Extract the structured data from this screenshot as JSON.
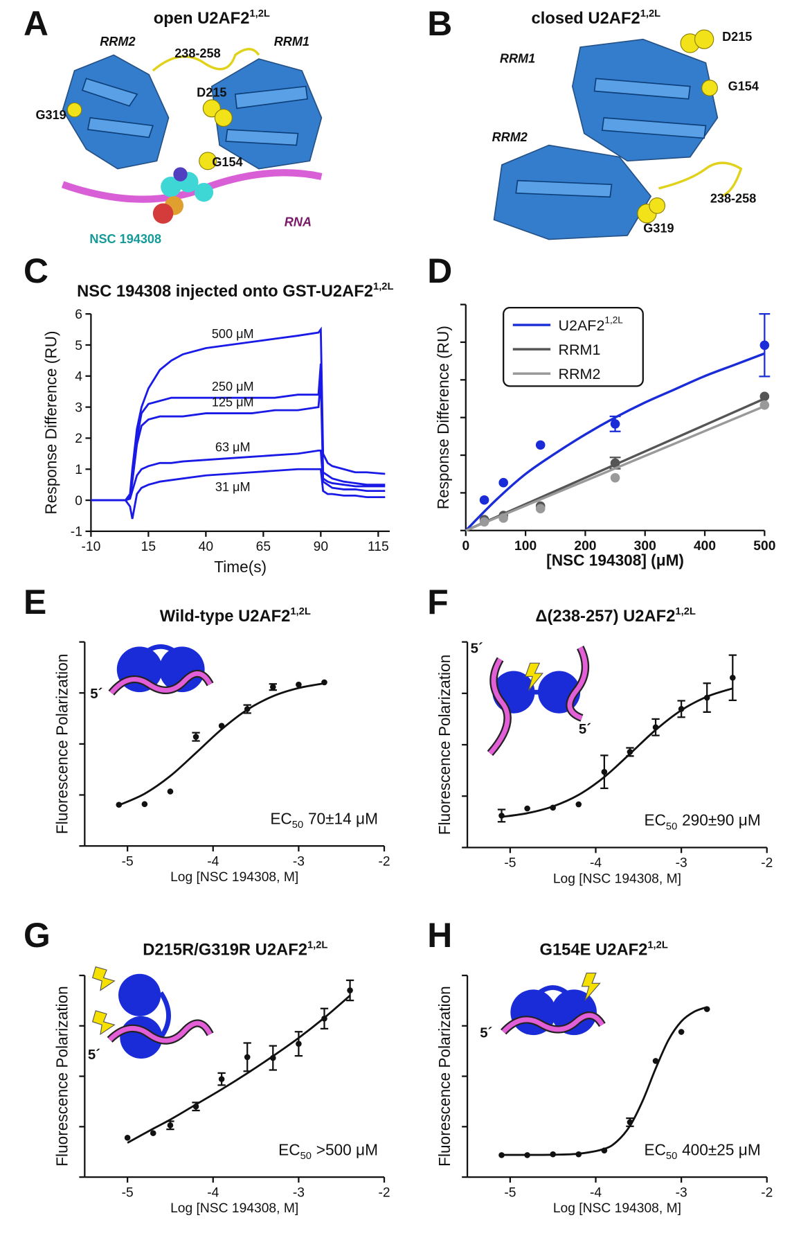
{
  "structures": [
    {
      "letter": "A",
      "title": "open U2AF2",
      "title_sup": "1,2L",
      "labels": [
        "RRM2",
        "238-258",
        "RRM1",
        "D215",
        "G319",
        "G154",
        "NSC 194308",
        "RNA"
      ]
    },
    {
      "letter": "B",
      "title": "closed U2AF2",
      "title_sup": "1,2L",
      "labels": [
        "RRM1",
        "D215",
        "G154",
        "RRM2",
        "238-258",
        "G319"
      ]
    }
  ],
  "chart_data": [
    {
      "type": "line",
      "letter": "C",
      "title": "NSC 194308 injected onto GST-U2AF2",
      "title_sup": "1,2L",
      "xlabel": "Time(s)",
      "ylabel": "Response Difference (RU)",
      "xlim": [
        -10,
        120
      ],
      "ylim": [
        -1,
        6
      ],
      "xticks": [
        -10,
        15,
        40,
        65,
        90,
        115
      ],
      "yticks": [
        -1,
        0,
        1,
        2,
        3,
        4,
        5,
        6
      ],
      "x": [
        -10,
        -5,
        0,
        5,
        7,
        8,
        10,
        12,
        15,
        20,
        25,
        30,
        40,
        50,
        60,
        70,
        80,
        89,
        90,
        91,
        93,
        95,
        100,
        105,
        110,
        118
      ],
      "series": [
        {
          "name": "500 μM",
          "color": "#1a1ae6",
          "values": [
            0,
            0,
            0,
            0,
            0.2,
            1.0,
            2.3,
            3.0,
            3.6,
            4.2,
            4.5,
            4.7,
            4.9,
            5.0,
            5.1,
            5.2,
            5.3,
            5.4,
            5.5,
            1.5,
            1.2,
            1.1,
            1.0,
            0.9,
            0.9,
            0.85
          ]
        },
        {
          "name": "250 μM",
          "color": "#1a1ae6",
          "values": [
            0,
            0,
            0,
            0,
            0.1,
            0.8,
            2.0,
            2.8,
            3.1,
            3.2,
            3.3,
            3.3,
            3.3,
            3.3,
            3.3,
            3.3,
            3.4,
            3.4,
            4.4,
            0.9,
            0.8,
            0.7,
            0.6,
            0.55,
            0.5,
            0.5
          ]
        },
        {
          "name": "125 μM",
          "color": "#1a1ae6",
          "values": [
            0,
            0,
            0,
            0,
            0.1,
            0.6,
            1.8,
            2.4,
            2.6,
            2.7,
            2.7,
            2.7,
            2.8,
            2.8,
            2.8,
            2.9,
            2.9,
            3.0,
            3.9,
            0.7,
            0.6,
            0.55,
            0.5,
            0.45,
            0.45,
            0.45
          ]
        },
        {
          "name": "63 μM",
          "color": "#1a1ae6",
          "values": [
            0,
            0,
            0,
            0,
            0.05,
            0.3,
            0.8,
            1.0,
            1.1,
            1.2,
            1.2,
            1.25,
            1.3,
            1.35,
            1.4,
            1.45,
            1.5,
            1.6,
            1.6,
            0.6,
            0.5,
            0.4,
            0.35,
            0.35,
            0.3,
            0.3
          ]
        },
        {
          "name": "31 μM",
          "color": "#1a1ae6",
          "values": [
            0,
            0,
            0,
            0,
            -0.2,
            -0.6,
            0.2,
            0.4,
            0.5,
            0.6,
            0.65,
            0.7,
            0.8,
            0.85,
            0.9,
            0.95,
            1.0,
            1.0,
            1.0,
            0.3,
            0.2,
            0.2,
            0.15,
            0.15,
            0.1,
            0.1
          ]
        }
      ]
    },
    {
      "type": "scatter_fit",
      "letter": "D",
      "xlabel": "[NSC 194308] (μM)",
      "ylabel": "Response Difference (RU)",
      "xlim": [
        0,
        500
      ],
      "ylim": [
        0,
        60
      ],
      "xticks": [
        0,
        100,
        200,
        300,
        400,
        500
      ],
      "yticks": [
        0,
        10,
        20,
        30,
        40,
        50,
        60
      ],
      "show_ytick_labels": false,
      "legend": "upper left",
      "series": [
        {
          "name": "U2AF2",
          "name_sup": "1,2L",
          "color": "#1a2bd8",
          "x": [
            31,
            63,
            125,
            250,
            500
          ],
          "values": [
            8.1,
            12.7,
            22.7,
            28.3,
            49.2
          ],
          "errors": [
            null,
            null,
            null,
            2,
            8.3
          ],
          "fit_x": [
            0,
            50,
            100,
            150,
            200,
            250,
            300,
            350,
            400,
            450,
            500
          ],
          "fit_values": [
            0,
            8,
            15,
            20.5,
            25.5,
            30,
            34,
            37.5,
            41,
            44,
            47
          ]
        },
        {
          "name": "RRM1",
          "color": "#555555",
          "x": [
            31,
            63,
            125,
            250,
            500
          ],
          "values": [
            2.9,
            4.0,
            6.5,
            17.9,
            35.6
          ],
          "errors": [
            null,
            null,
            null,
            1.5,
            null
          ],
          "fit_x": [
            0,
            500
          ],
          "fit_values": [
            0,
            35
          ]
        },
        {
          "name": "RRM2",
          "color": "#999999",
          "x": [
            31,
            63,
            125,
            250,
            500
          ],
          "values": [
            2.3,
            3.3,
            5.8,
            14,
            33.3
          ],
          "errors": [
            null,
            null,
            null,
            null,
            null
          ],
          "fit_x": [
            0,
            500
          ],
          "fit_values": [
            0,
            33
          ]
        }
      ]
    },
    {
      "type": "dose_response",
      "letter": "E",
      "title": "Wild-type U2AF2",
      "title_sup": "1,2L",
      "xlabel": "Log [NSC 194308, M]",
      "ylabel": "Fluorescence Polarization",
      "xlim": [
        -5.5,
        -2
      ],
      "ylim": [
        0,
        100
      ],
      "xticks": [
        -5,
        -4,
        -3,
        -2
      ],
      "yticks": [
        0,
        25,
        50,
        75,
        100
      ],
      "show_ytick_labels": false,
      "color": "#111111",
      "x": [
        -5.1,
        -4.8,
        -4.5,
        -4.2,
        -3.9,
        -3.6,
        -3.3,
        -3.0,
        -2.7
      ],
      "values": [
        20.2,
        20.5,
        26.7,
        53.5,
        58.9,
        67.1,
        77.9,
        79.1,
        80.2
      ],
      "errors": [
        null,
        null,
        null,
        2,
        null,
        2,
        1.5,
        null,
        null
      ],
      "fit_x": [
        -5.1,
        -4.8,
        -4.5,
        -4.2,
        -3.9,
        -3.6,
        -3.3,
        -3.0,
        -2.7
      ],
      "fit_values": [
        20.0,
        25.6,
        34.3,
        45.6,
        57.2,
        66.8,
        73.4,
        77.4,
        79.7
      ],
      "annotation": {
        "prefix": "EC",
        "sub": "50",
        "text": "70±14 μM"
      },
      "five_prime": [
        "5´"
      ]
    },
    {
      "type": "dose_response",
      "letter": "F",
      "title": "Δ(238-257) U2AF2",
      "title_sup": "1,2L",
      "xlabel": "Log [NSC 194308, M]",
      "ylabel": "Fluorescence Polarization",
      "xlim": [
        -5.5,
        -2
      ],
      "ylim": [
        0,
        100
      ],
      "xticks": [
        -5,
        -4,
        -3,
        -2
      ],
      "yticks": [
        0,
        25,
        50,
        75,
        100
      ],
      "show_ytick_labels": false,
      "color": "#111111",
      "x": [
        -5.1,
        -4.8,
        -4.5,
        -4.2,
        -3.9,
        -3.6,
        -3.3,
        -3.0,
        -2.7,
        -2.4
      ],
      "values": [
        15.5,
        19,
        19.4,
        21,
        36.8,
        46.5,
        58.5,
        67.4,
        72.9,
        82.6
      ],
      "errors": [
        3,
        null,
        null,
        null,
        8,
        2,
        4,
        4,
        7,
        11
      ],
      "fit_x": [
        -5.1,
        -4.8,
        -4.5,
        -4.2,
        -3.9,
        -3.6,
        -3.3,
        -3.0,
        -2.7,
        -2.4
      ],
      "fit_values": [
        14.9,
        16.7,
        20.0,
        25.6,
        34.3,
        45.6,
        57.2,
        66.8,
        73.4,
        77.4
      ],
      "annotation": {
        "prefix": "EC",
        "sub": "50",
        "text": "290±90 μM"
      },
      "five_prime": [
        "5´",
        "5´"
      ]
    },
    {
      "type": "dose_response",
      "letter": "G",
      "title": "D215R/G319R U2AF2",
      "title_sup": "1,2L",
      "xlabel": "Log [NSC 194308, M]",
      "ylabel": "Fluorescence Polarization",
      "xlim": [
        -5.5,
        -2
      ],
      "ylim": [
        0,
        100
      ],
      "xticks": [
        -5,
        -4,
        -3,
        -2
      ],
      "yticks": [
        0,
        25,
        50,
        75,
        100
      ],
      "show_ytick_labels": false,
      "color": "#111111",
      "x": [
        -5.0,
        -4.7,
        -4.5,
        -4.2,
        -3.9,
        -3.6,
        -3.3,
        -3.0,
        -2.7,
        -2.4
      ],
      "values": [
        19.5,
        21.8,
        25.7,
        35,
        48.6,
        59.5,
        59.1,
        66.1,
        78.6,
        92.6
      ],
      "errors": [
        null,
        null,
        2,
        2,
        3,
        7,
        6,
        6,
        5,
        5
      ],
      "fit_x": [
        -5.0,
        -4.7,
        -4.5,
        -4.2,
        -3.9,
        -3.6,
        -3.3,
        -3.0,
        -2.7,
        -2.4
      ],
      "fit_values": [
        17,
        24,
        28.5,
        36,
        43.5,
        51.5,
        60,
        69,
        79,
        90
      ],
      "annotation": {
        "prefix": "EC",
        "sub": "50",
        "text": ">500 μM"
      },
      "five_prime": [
        "5´"
      ]
    },
    {
      "type": "dose_response",
      "letter": "H",
      "title": "G154E U2AF2",
      "title_sup": "1,2L",
      "xlabel": "Log [NSC 194308, M]",
      "ylabel": "Fluorescence Polarization",
      "xlim": [
        -5.5,
        -2
      ],
      "ylim": [
        0,
        100
      ],
      "xticks": [
        -5,
        -4,
        -3,
        -2
      ],
      "yticks": [
        0,
        25,
        50,
        75,
        100
      ],
      "show_ytick_labels": false,
      "color": "#111111",
      "x": [
        -5.1,
        -4.8,
        -4.5,
        -4.2,
        -3.9,
        -3.6,
        -3.3,
        -3.0,
        -2.7
      ],
      "values": [
        10.9,
        10.9,
        11.3,
        11.3,
        13.2,
        27.2,
        57.6,
        72,
        83.3
      ],
      "errors": [
        null,
        null,
        null,
        null,
        null,
        2,
        null,
        null,
        null
      ],
      "fit_x": [
        -5.1,
        -4.8,
        -4.5,
        -4.2,
        -3.9,
        -3.75,
        -3.6,
        -3.45,
        -3.3,
        -3.15,
        -3.0,
        -2.85,
        -2.7
      ],
      "fit_values": [
        11.0,
        11.0,
        11.1,
        11.6,
        14.0,
        17.8,
        25.4,
        38.0,
        53.8,
        68.0,
        77.2,
        82.0,
        84.3
      ],
      "annotation": {
        "prefix": "EC",
        "sub": "50",
        "text": "400±25 μM"
      },
      "five_prime": [
        "5´"
      ]
    }
  ]
}
